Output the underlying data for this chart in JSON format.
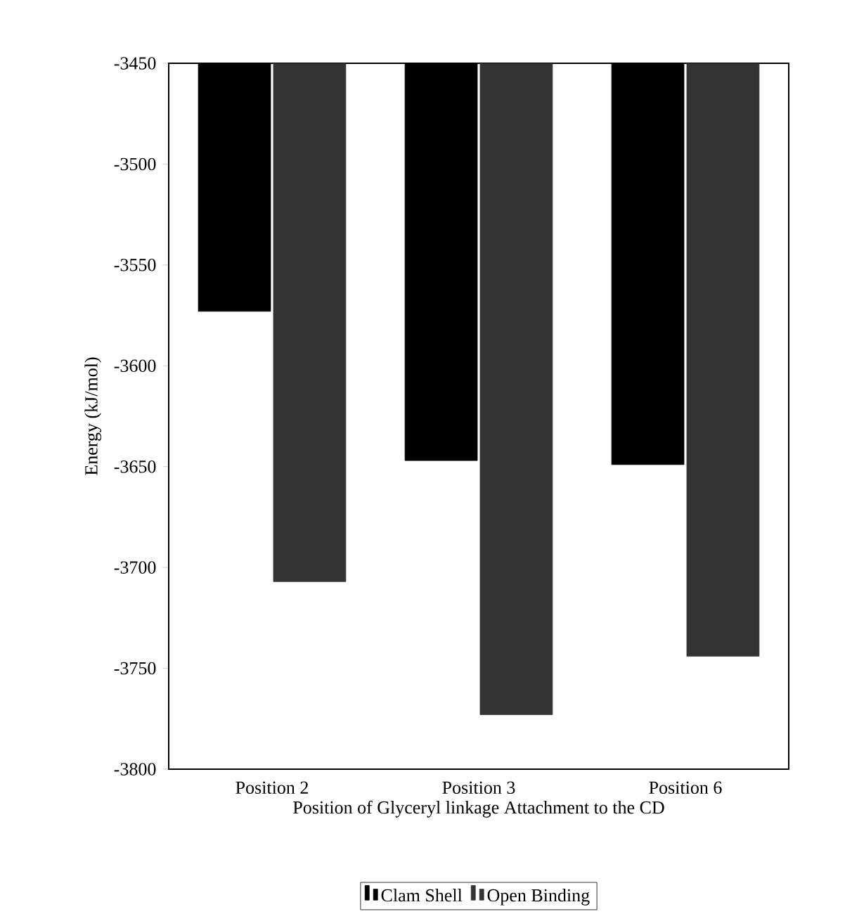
{
  "chart_data": {
    "type": "bar",
    "xlabel": "Position of Glyceryl linkage Attachment to the CD",
    "ylabel": "Energy (kJ/mol)",
    "categories": [
      "Position 2",
      "Position 3",
      "Position 6"
    ],
    "series": [
      {
        "name": "Clam Shell",
        "color": "#000000",
        "values": [
          -3573,
          -3647,
          -3649
        ]
      },
      {
        "name": "Open Binding",
        "color": "#333333",
        "values": [
          -3707,
          -3773,
          -3744
        ]
      }
    ],
    "ylim": [
      -3800,
      -3450
    ],
    "yticks": [
      -3800,
      -3750,
      -3700,
      -3650,
      -3600,
      -3550,
      -3500,
      -3450
    ],
    "grid": false,
    "legend": "bottom"
  }
}
